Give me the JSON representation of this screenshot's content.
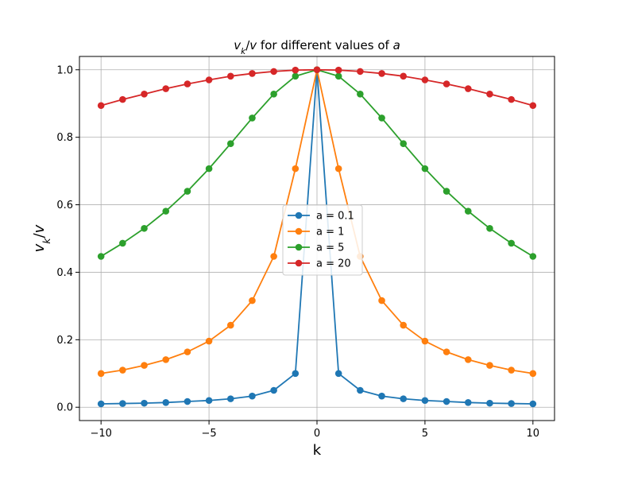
{
  "chart_data": {
    "type": "line",
    "title_parts": [
      {
        "text": "v",
        "style": "italic",
        "shift": "none"
      },
      {
        "text": "k",
        "style": "italic",
        "shift": "sub"
      },
      {
        "text": "/",
        "style": "normal",
        "shift": "none"
      },
      {
        "text": "v",
        "style": "italic",
        "shift": "none"
      },
      {
        "text": " for different values of ",
        "style": "normal",
        "shift": "none"
      },
      {
        "text": "a",
        "style": "italic",
        "shift": "none"
      }
    ],
    "xlabel": "k",
    "ylabel_parts": [
      {
        "text": "v",
        "style": "italic",
        "shift": "none"
      },
      {
        "text": "k",
        "style": "italic",
        "shift": "sub"
      },
      {
        "text": "/",
        "style": "normal",
        "shift": "none"
      },
      {
        "text": "v",
        "style": "italic",
        "shift": "none"
      }
    ],
    "xlim": [
      -11,
      11
    ],
    "ylim": [
      -0.0395,
      1.0395
    ],
    "xticks": [
      -10,
      -5,
      0,
      5,
      10
    ],
    "xtick_labels": [
      "−10",
      "−5",
      "0",
      "5",
      "10"
    ],
    "yticks": [
      0.0,
      0.2,
      0.4,
      0.6,
      0.8,
      1.0
    ],
    "ytick_labels": [
      "0.0",
      "0.2",
      "0.4",
      "0.6",
      "0.8",
      "1.0"
    ],
    "grid": true,
    "legend_position": "center",
    "x": [
      -10,
      -9,
      -8,
      -7,
      -6,
      -5,
      -4,
      -3,
      -2,
      -1,
      0,
      1,
      2,
      3,
      4,
      5,
      6,
      7,
      8,
      9,
      10
    ],
    "series": [
      {
        "name": "a = 0.1",
        "color": "#1f77b4",
        "values": [
          0.01,
          0.011,
          0.012,
          0.014,
          0.017,
          0.02,
          0.025,
          0.033,
          0.05,
          0.1,
          1.0,
          0.1,
          0.05,
          0.033,
          0.025,
          0.02,
          0.017,
          0.014,
          0.012,
          0.011,
          0.01
        ]
      },
      {
        "name": "a = 1",
        "color": "#ff7f0e",
        "values": [
          0.1,
          0.11,
          0.124,
          0.141,
          0.164,
          0.196,
          0.243,
          0.316,
          0.447,
          0.707,
          1.0,
          0.707,
          0.447,
          0.316,
          0.243,
          0.196,
          0.164,
          0.141,
          0.124,
          0.11,
          0.1
        ]
      },
      {
        "name": "a = 5",
        "color": "#2ca02c",
        "values": [
          0.447,
          0.486,
          0.53,
          0.581,
          0.64,
          0.707,
          0.781,
          0.857,
          0.928,
          0.981,
          1.0,
          0.981,
          0.928,
          0.857,
          0.781,
          0.707,
          0.64,
          0.581,
          0.53,
          0.486,
          0.447
        ]
      },
      {
        "name": "a = 20",
        "color": "#d62728",
        "values": [
          0.894,
          0.912,
          0.928,
          0.944,
          0.958,
          0.97,
          0.981,
          0.989,
          0.995,
          0.999,
          1.0,
          0.999,
          0.995,
          0.989,
          0.981,
          0.97,
          0.958,
          0.944,
          0.928,
          0.912,
          0.894
        ]
      }
    ]
  }
}
